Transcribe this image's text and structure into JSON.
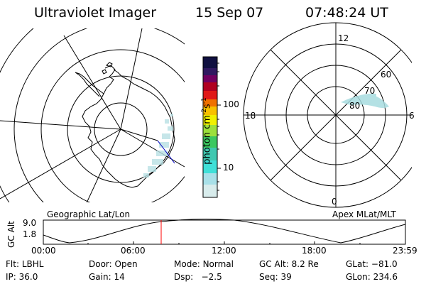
{
  "header": {
    "title": "Ultraviolet Imager",
    "date": "15 Sep 07",
    "time": "07:48:24 UT"
  },
  "left_map": {
    "caption": "Geographic Lat/Lon"
  },
  "right_map": {
    "caption": "Apex MLat/MLT",
    "mlt_labels": [
      "12",
      "18",
      "6",
      "0"
    ],
    "mlat_labels": [
      "60",
      "70",
      "80"
    ]
  },
  "colorbar": {
    "unit_label": "photon cm",
    "unit_sup1": "-2",
    "unit_mid": "s",
    "unit_sup2": "-1",
    "tick_labels": [
      "100",
      "10"
    ],
    "scale": "log",
    "colors_bottom_to_top": [
      "#d8ecec",
      "#a8e0e8",
      "#40e0d8",
      "#3cc860",
      "#9ce03c",
      "#f0f000",
      "#f8c000",
      "#f07000",
      "#e01818",
      "#b00020",
      "#700060",
      "#301860",
      "#101040"
    ]
  },
  "altitude_plot": {
    "ylabel": "GC Alt",
    "y_ticks": [
      "9.0",
      "1.8"
    ],
    "x_ticks": [
      "00:00",
      "06:00",
      "12:00",
      "18:00",
      "23:59"
    ],
    "marker_color": "#ff0000",
    "marker_time_hours": 7.81
  },
  "footer": {
    "row1": [
      {
        "label": "Flt:",
        "value": "LBHL"
      },
      {
        "label": "Door:",
        "value": "Open"
      },
      {
        "label": "Mode:",
        "value": "Normal"
      },
      {
        "label": "GC Alt:",
        "value": "8.2 Re"
      },
      {
        "label": "GLat:",
        "value": "−81.0"
      }
    ],
    "row2": [
      {
        "label": "IP:",
        "value": "36.0"
      },
      {
        "label": "Gain:",
        "value": "14"
      },
      {
        "label": "Dsp:",
        "value": "   −2.5"
      },
      {
        "label": "Seq:",
        "value": "39"
      },
      {
        "label": "GLon:",
        "value": "234.6"
      }
    ]
  }
}
